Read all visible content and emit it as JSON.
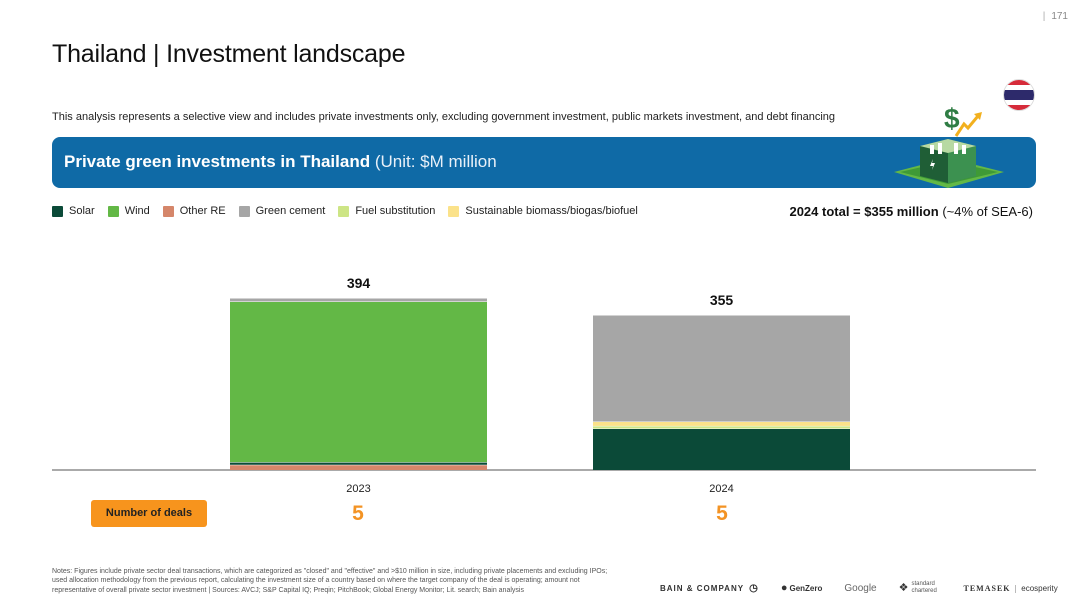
{
  "page": {
    "number": "171",
    "separator": "|"
  },
  "header": {
    "title": "Thailand | Investment landscape",
    "subtitle": "This analysis represents a selective view and includes private investments only, excluding government investment, public markets investment, and debt financing"
  },
  "banner": {
    "title_strong": "Private green investments in Thailand",
    "title_unit": "(Unit: $M million"
  },
  "summary": {
    "total_strong": "2024 total = $355 million",
    "total_note": "(~4% of SEA-6)"
  },
  "colors": {
    "Solar": "#0b4a38",
    "Wind": "#63b846",
    "Other RE": "#d5866a",
    "Green cement": "#a6a6a6",
    "Fuel substitution": "#cde585",
    "Sustainable biomass/biogas/biofuel": "#fbe28a",
    "banner": "#0f6aa6",
    "deals": "#f39324"
  },
  "chart_data": {
    "type": "bar",
    "stacked": true,
    "categories": [
      "2023",
      "2024"
    ],
    "series": [
      {
        "name": "Other RE",
        "values": [
          12,
          0
        ]
      },
      {
        "name": "Solar",
        "values": [
          6,
          95
        ]
      },
      {
        "name": "Wind",
        "values": [
          368,
          0
        ]
      },
      {
        "name": "Fuel substitution",
        "values": [
          0,
          6
        ]
      },
      {
        "name": "Sustainable biomass/biogas/biofuel",
        "values": [
          0,
          10
        ]
      },
      {
        "name": "Green cement",
        "values": [
          8,
          244
        ]
      }
    ],
    "totals": [
      394,
      355
    ],
    "legend_order": [
      "Solar",
      "Wind",
      "Other RE",
      "Green cement",
      "Fuel substitution",
      "Sustainable biomass/biogas/biofuel"
    ],
    "ylim": [
      0,
      394
    ],
    "grid": false,
    "legend_position": "top-left"
  },
  "deals": {
    "label": "Number of deals",
    "values": [
      "5",
      "5"
    ]
  },
  "notes": "Notes: Figures include private sector deal transactions, which are categorized as \"closed\" and \"effective\" and >$10 million in size, including private placements and excluding IPOs; used allocation methodology from the previous report, calculating the investment size of a country based on where the target company of the deal is operating; amount not representative of overall private sector investment | Sources: AVCJ; S&P Capital IQ; Preqin; PitchBook; Global Energy Monitor; Lit. search; Bain analysis",
  "logos": {
    "bain": "BAIN & COMPANY",
    "genzero": "GenZero",
    "google": "Google",
    "sc": "standard chartered",
    "temasek": "TEMASEK",
    "ecosperity": "ecosperity"
  }
}
